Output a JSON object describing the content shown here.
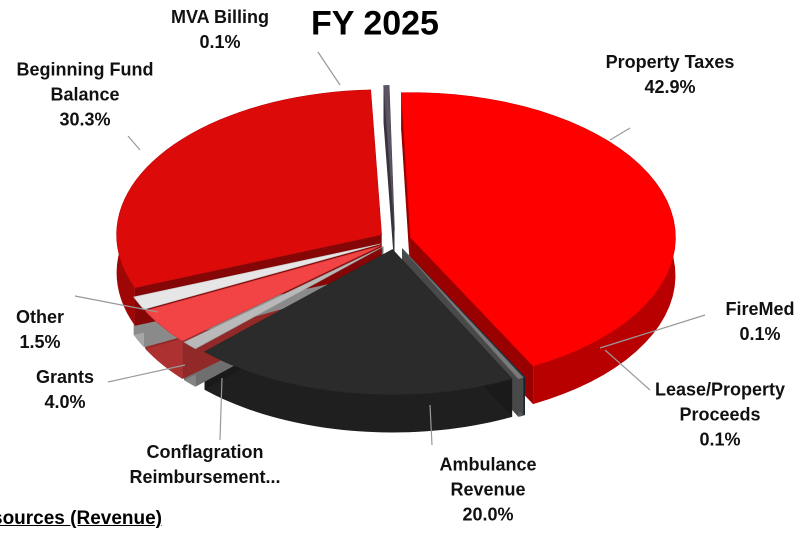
{
  "chart_data": {
    "type": "pie",
    "title": "FY 2025",
    "caption": "sources (Revenue)",
    "categories": [
      "Property Taxes",
      "FireMed",
      "Lease/Property Proceeds",
      "Ambulance Revenue",
      "Conflagration Reimbursement...",
      "Grants",
      "Other",
      "Beginning Fund Balance",
      "MVA Billing"
    ],
    "values": [
      42.9,
      0.1,
      0.1,
      20.0,
      1.0,
      4.0,
      1.5,
      30.3,
      0.1
    ],
    "value_labels": [
      "42.9%",
      "0.1%",
      "0.1%",
      "20.0%",
      null,
      "4.0%",
      "1.5%",
      "30.3%",
      "0.1%"
    ],
    "colors": [
      "#ff0000",
      "#163a4c",
      "#7a7a7a",
      "#2b2b2b",
      "#b9b9b9",
      "#f24444",
      "#e6e6e6",
      "#dd0a0a",
      "#5c5463"
    ]
  }
}
